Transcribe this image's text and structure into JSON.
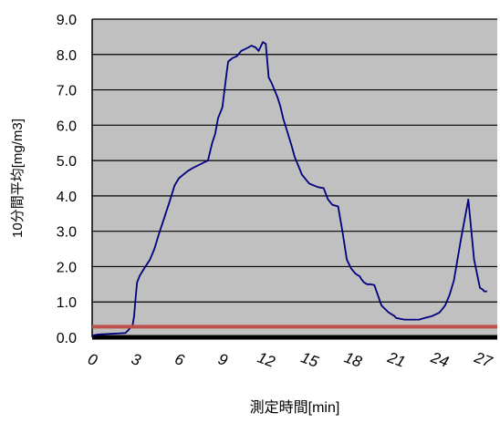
{
  "chart_data": {
    "type": "line",
    "xlabel": "測定時間[min]",
    "ylabel": "10分間平均[mg/m3]",
    "xlim": [
      0,
      28
    ],
    "ylim": [
      0,
      9
    ],
    "x_ticks": [
      "0",
      "3",
      "6",
      "9",
      "12",
      "15",
      "18",
      "21",
      "24",
      "27"
    ],
    "y_ticks": [
      "0.0",
      "1.0",
      "2.0",
      "3.0",
      "4.0",
      "5.0",
      "6.0",
      "7.0",
      "8.0",
      "9.0"
    ],
    "grid": true,
    "plot_background": "#c0c0c0",
    "series": [
      {
        "color": "#00007f",
        "x": [
          0,
          0.4,
          2.3,
          2.5,
          2.8,
          2.9,
          3.0,
          3.1,
          3.3,
          3.6,
          4.0,
          4.3,
          4.6,
          5.0,
          5.4,
          5.7,
          6.0,
          6.3,
          6.6,
          7.0,
          7.5,
          8.0,
          8.3,
          8.5,
          8.7,
          9.0,
          9.3,
          9.4,
          9.7,
          10.0,
          10.3,
          10.8,
          11.0,
          11.3,
          11.5,
          11.8,
          12.0,
          12.2,
          12.4,
          12.6,
          12.8,
          13.0,
          13.2,
          13.5,
          13.8,
          14.0,
          14.3,
          14.5,
          14.8,
          15.0,
          15.3,
          15.6,
          16.0,
          16.3,
          16.6,
          17.0,
          17.3,
          17.6,
          17.9,
          18.2,
          18.5,
          18.6,
          18.8,
          19.0,
          19.2,
          19.5,
          20.0,
          20.5,
          20.9,
          21.0,
          21.3,
          21.6,
          22.0,
          22.3,
          22.6,
          23.0,
          23.5,
          24.0,
          24.4,
          24.7,
          25.0,
          25.5,
          26.0,
          26.4,
          26.8,
          27.0,
          27.1,
          27.2,
          27.3
        ],
        "y": [
          0.05,
          0.08,
          0.12,
          0.2,
          0.35,
          0.6,
          1.1,
          1.55,
          1.75,
          1.95,
          2.2,
          2.5,
          2.9,
          3.4,
          3.9,
          4.3,
          4.5,
          4.6,
          4.7,
          4.8,
          4.9,
          5.0,
          5.5,
          5.75,
          6.2,
          6.5,
          7.5,
          7.8,
          7.9,
          7.95,
          8.1,
          8.2,
          8.25,
          8.2,
          8.1,
          8.35,
          8.3,
          7.35,
          7.2,
          7.0,
          6.8,
          6.55,
          6.2,
          5.8,
          5.4,
          5.1,
          4.8,
          4.6,
          4.45,
          4.35,
          4.3,
          4.25,
          4.22,
          3.9,
          3.75,
          3.7,
          3.0,
          2.2,
          1.95,
          1.8,
          1.72,
          1.65,
          1.55,
          1.5,
          1.5,
          1.48,
          0.9,
          0.7,
          0.6,
          0.55,
          0.52,
          0.5,
          0.5,
          0.5,
          0.5,
          0.55,
          0.6,
          0.7,
          0.9,
          1.2,
          1.6,
          2.8,
          3.9,
          2.2,
          1.4,
          1.35,
          1.3,
          1.3,
          1.3
        ]
      },
      {
        "type": "reference_line",
        "color": "#c0504d",
        "y": 0.3
      }
    ]
  }
}
